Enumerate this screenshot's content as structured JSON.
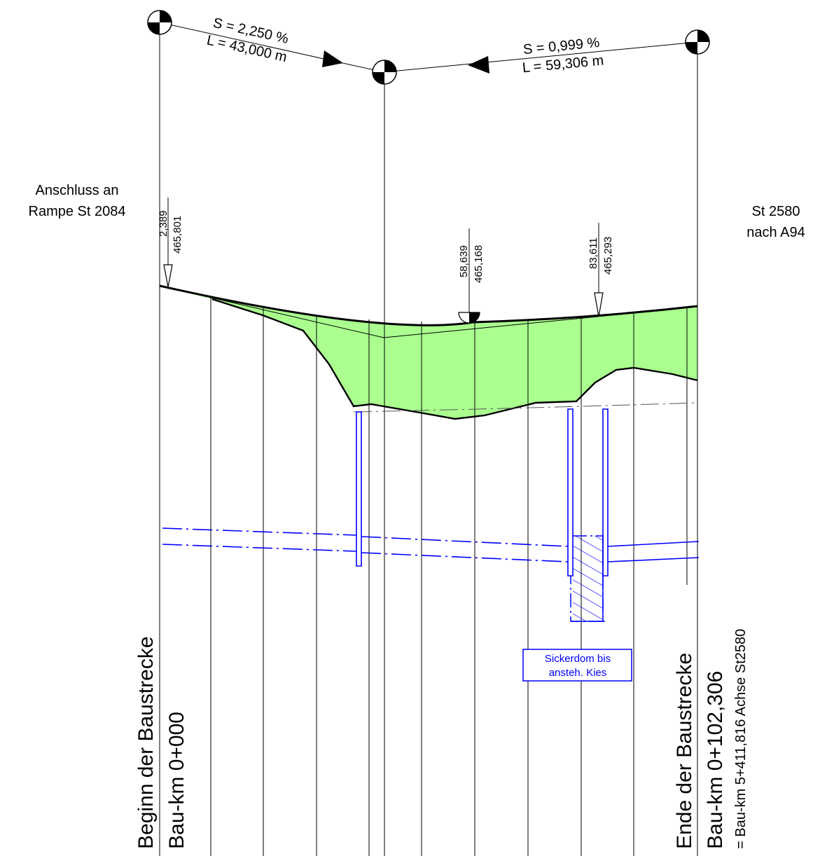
{
  "gradients": {
    "left": {
      "slope": "S = 2,250 %",
      "length": "L = 43,000 m"
    },
    "right": {
      "slope": "S = 0,999 %",
      "length": "L = 59,306 m"
    }
  },
  "labels": {
    "start_connection_line1": "Anschluss an",
    "start_connection_line2": "Rampe St 2084",
    "end_connection_line1": "St 2580",
    "end_connection_line2": "nach A94"
  },
  "markers": [
    {
      "station": "2,389",
      "elevation": "465,801"
    },
    {
      "station": "58,639",
      "elevation": "465,168"
    },
    {
      "station": "83,611",
      "elevation": "465,293"
    }
  ],
  "note": {
    "line1": "Sickerdom bis",
    "line2": "ansteh. Kies"
  },
  "start_text": {
    "line1": "Beginn der Baustrecke",
    "line2": "Bau-km 0+000"
  },
  "end_text": {
    "line1": "Ende der Baustrecke",
    "line2": "Bau-km 0+102,306",
    "line3": "= Bau-km 5+411,816 Achse St2580"
  },
  "colors": {
    "fill_area": "#aaff8f",
    "pipes": "#0000ff",
    "lines": "#000000"
  }
}
